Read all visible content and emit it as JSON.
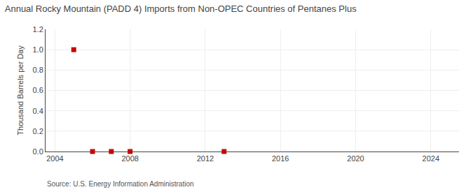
{
  "chart_data": {
    "type": "scatter",
    "title": "Annual Rocky Mountain (PADD 4) Imports from Non-OPEC Countries of Pentanes Plus",
    "ylabel": "Thousand Barrels per Day",
    "annotations": [
      "Source: U.S. Energy Information Administration"
    ],
    "x": [
      2005,
      2006,
      2007,
      2008,
      2013
    ],
    "values": [
      1.0,
      0.0,
      0.0,
      0.0,
      0.0
    ],
    "color": "#cc0000",
    "marker": "square",
    "xlim": [
      2003.5,
      2025.5
    ],
    "xticks": [
      2004,
      2008,
      2012,
      2016,
      2020,
      2024
    ],
    "ylim": [
      0.0,
      1.2
    ],
    "yticks": [
      {
        "value": 0,
        "label": "0.0"
      },
      0.2,
      0.4,
      0.6,
      0.8,
      {
        "value": 1,
        "label": "1.0"
      },
      1.2
    ],
    "grid": true
  }
}
